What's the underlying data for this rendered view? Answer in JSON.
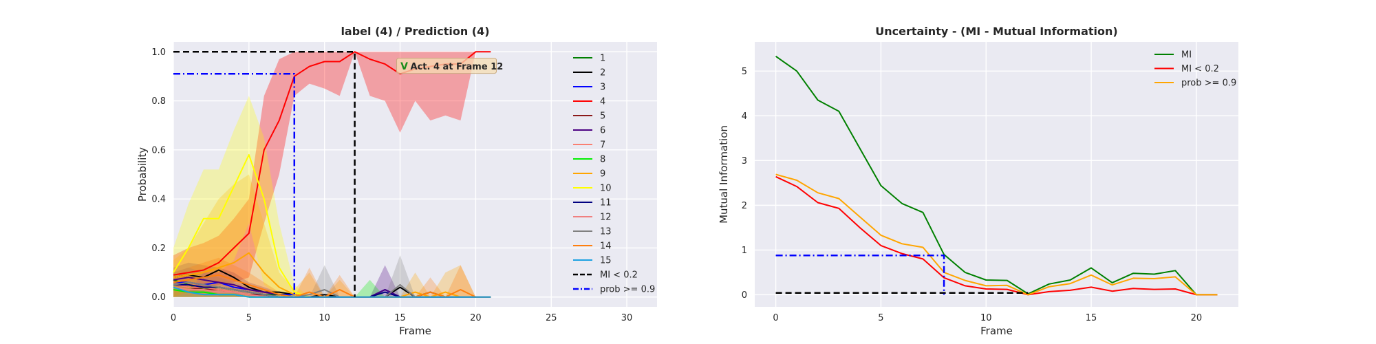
{
  "chart_data": [
    {
      "type": "line",
      "title": "label (4) / Prediction (4)",
      "xlabel": "Frame",
      "ylabel": "Probability",
      "xlim": [
        0,
        32
      ],
      "ylim": [
        -0.04,
        1.04
      ],
      "xticks": [
        0,
        5,
        10,
        15,
        20,
        25,
        30
      ],
      "yticks": [
        0.0,
        0.2,
        0.4,
        0.6,
        0.8,
        1.0
      ],
      "grid": true,
      "legend_position": "upper-right",
      "x": [
        0,
        1,
        2,
        3,
        4,
        5,
        6,
        7,
        8,
        9,
        10,
        11,
        12,
        13,
        14,
        15,
        16,
        17,
        18,
        19,
        20,
        21
      ],
      "series": [
        {
          "name": "1",
          "color": "#008000",
          "values": [
            0.07,
            0.05,
            0.03,
            0.04,
            0.03,
            0.02,
            0.01,
            0.01,
            0.01,
            0.0,
            0.0,
            0.0,
            0.0,
            0.0,
            0.03,
            0.0,
            0.0,
            0.0,
            0.0,
            0.0,
            0.0,
            0.0
          ]
        },
        {
          "name": "2",
          "color": "#000000",
          "values": [
            0.08,
            0.09,
            0.08,
            0.11,
            0.08,
            0.04,
            0.02,
            0.02,
            0.01,
            0.0,
            0.01,
            0.0,
            0.0,
            0.0,
            0.0,
            0.04,
            0.0,
            0.02,
            0.0,
            0.0,
            0.0,
            0.0
          ]
        },
        {
          "name": "3",
          "color": "#0000ff",
          "values": [
            0.06,
            0.06,
            0.05,
            0.06,
            0.04,
            0.03,
            0.02,
            0.01,
            0.01,
            0.0,
            0.0,
            0.0,
            0.0,
            0.0,
            0.03,
            0.0,
            0.0,
            0.0,
            0.0,
            0.0,
            0.0,
            0.0
          ]
        },
        {
          "name": "4",
          "color": "#ff0000",
          "values": [
            0.09,
            0.1,
            0.11,
            0.14,
            0.2,
            0.26,
            0.6,
            0.72,
            0.9,
            0.94,
            0.96,
            0.96,
            1.0,
            0.97,
            0.95,
            0.91,
            0.93,
            0.94,
            0.95,
            0.95,
            1.0,
            1.0
          ],
          "band_low": [
            0.0,
            0.02,
            0.03,
            0.05,
            0.06,
            0.08,
            0.3,
            0.5,
            0.82,
            0.87,
            0.85,
            0.82,
            1.0,
            0.82,
            0.8,
            0.67,
            0.8,
            0.72,
            0.74,
            0.72,
            1.0,
            1.0
          ],
          "band_high": [
            0.17,
            0.2,
            0.22,
            0.25,
            0.32,
            0.4,
            0.82,
            0.97,
            1.0,
            1.0,
            1.0,
            1.0,
            1.0,
            1.0,
            1.0,
            1.0,
            1.0,
            1.0,
            1.0,
            1.0,
            1.0,
            1.0
          ]
        },
        {
          "name": "5",
          "color": "#8b1a1a",
          "values": [
            0.05,
            0.04,
            0.03,
            0.03,
            0.02,
            0.01,
            0.01,
            0.0,
            0.0,
            0.0,
            0.0,
            0.0,
            0.0,
            0.0,
            0.0,
            0.0,
            0.0,
            0.0,
            0.0,
            0.0,
            0.0,
            0.0
          ]
        },
        {
          "name": "6",
          "color": "#4b0082",
          "values": [
            0.07,
            0.08,
            0.07,
            0.06,
            0.05,
            0.03,
            0.02,
            0.01,
            0.0,
            0.0,
            0.0,
            0.0,
            0.0,
            0.0,
            0.03,
            0.0,
            0.0,
            0.0,
            0.0,
            0.0,
            0.0,
            0.0
          ],
          "band_low": [
            0,
            0,
            0,
            0,
            0,
            0,
            0,
            0,
            0,
            0,
            0,
            0,
            0,
            0,
            0,
            0,
            0,
            0,
            0,
            0,
            0,
            0
          ],
          "band_high": [
            0.12,
            0.14,
            0.13,
            0.12,
            0.1,
            0.06,
            0.04,
            0.02,
            0.0,
            0.0,
            0.0,
            0.0,
            0.0,
            0.0,
            0.13,
            0.0,
            0.0,
            0.0,
            0.0,
            0.0,
            0.0,
            0.0
          ]
        },
        {
          "name": "7",
          "color": "#fa8072",
          "values": [
            0.05,
            0.04,
            0.04,
            0.03,
            0.02,
            0.01,
            0.0,
            0.0,
            0.0,
            0.0,
            0.0,
            0.0,
            0.0,
            0.0,
            0.0,
            0.0,
            0.0,
            0.0,
            0.0,
            0.0,
            0.0,
            0.0
          ]
        },
        {
          "name": "8",
          "color": "#00ee00",
          "values": [
            0.03,
            0.02,
            0.02,
            0.01,
            0.01,
            0.0,
            0.0,
            0.0,
            0.0,
            0.0,
            0.0,
            0.0,
            0.0,
            0.0,
            0.0,
            0.0,
            0.0,
            0.0,
            0.0,
            0.0,
            0.0,
            0.0
          ],
          "band_low": [
            0,
            0,
            0,
            0,
            0,
            0,
            0,
            0,
            0,
            0,
            0,
            0,
            0,
            0,
            0,
            0,
            0,
            0,
            0,
            0,
            0,
            0
          ],
          "band_high": [
            0.05,
            0.04,
            0.03,
            0.02,
            0.02,
            0.0,
            0.0,
            0.0,
            0.0,
            0.0,
            0.0,
            0.0,
            0.0,
            0.07,
            0.0,
            0.0,
            0.0,
            0.0,
            0.0,
            0.0,
            0.0,
            0.0
          ]
        },
        {
          "name": "9",
          "color": "#ffa500",
          "values": [
            0.08,
            0.09,
            0.1,
            0.12,
            0.14,
            0.18,
            0.1,
            0.04,
            0.01,
            0.0,
            0.0,
            0.0,
            0.0,
            0.0,
            0.0,
            0.0,
            0.02,
            0.0,
            0.02,
            0.0,
            0.0,
            0.0
          ],
          "band_low": [
            0,
            0,
            0,
            0,
            0,
            0,
            0,
            0,
            0,
            0,
            0,
            0,
            0,
            0,
            0,
            0,
            0,
            0,
            0,
            0,
            0,
            0
          ],
          "band_high": [
            0.15,
            0.2,
            0.3,
            0.4,
            0.46,
            0.5,
            0.3,
            0.1,
            0.03,
            0.1,
            0.0,
            0.07,
            0.0,
            0.0,
            0.0,
            0.0,
            0.1,
            0.0,
            0.1,
            0.13,
            0.0,
            0.0
          ]
        },
        {
          "name": "10",
          "color": "#ffff00",
          "values": [
            0.1,
            0.2,
            0.32,
            0.32,
            0.45,
            0.58,
            0.4,
            0.12,
            0.02,
            0.0,
            0.0,
            0.0,
            0.0,
            0.0,
            0.0,
            0.0,
            0.0,
            0.0,
            0.0,
            0.0,
            0.0,
            0.0
          ],
          "band_low": [
            0.0,
            0.02,
            0.1,
            0.1,
            0.15,
            0.3,
            0.05,
            0.0,
            0.0,
            0.0,
            0.0,
            0.0,
            0.0,
            0.0,
            0.0,
            0.0,
            0.0,
            0.0,
            0.0,
            0.0,
            0.0,
            0.0
          ],
          "band_high": [
            0.2,
            0.38,
            0.52,
            0.52,
            0.68,
            0.82,
            0.65,
            0.3,
            0.05,
            0.0,
            0.0,
            0.0,
            0.0,
            0.0,
            0.0,
            0.0,
            0.0,
            0.0,
            0.0,
            0.0,
            0.0,
            0.0
          ]
        },
        {
          "name": "11",
          "color": "#000080",
          "values": [
            0.05,
            0.05,
            0.04,
            0.04,
            0.03,
            0.02,
            0.01,
            0.0,
            0.0,
            0.0,
            0.0,
            0.0,
            0.0,
            0.0,
            0.02,
            0.0,
            0.0,
            0.0,
            0.0,
            0.0,
            0.0,
            0.0
          ]
        },
        {
          "name": "12",
          "color": "#f08080",
          "values": [
            0.04,
            0.03,
            0.03,
            0.02,
            0.02,
            0.01,
            0.0,
            0.0,
            0.0,
            0.0,
            0.0,
            0.0,
            0.0,
            0.0,
            0.0,
            0.0,
            0.0,
            0.0,
            0.0,
            0.0,
            0.0,
            0.0
          ]
        },
        {
          "name": "13",
          "color": "#808080",
          "values": [
            0.05,
            0.06,
            0.05,
            0.04,
            0.03,
            0.02,
            0.01,
            0.0,
            0.0,
            0.01,
            0.03,
            0.0,
            0.0,
            0.0,
            0.0,
            0.05,
            0.0,
            0.0,
            0.0,
            0.0,
            0.0,
            0.0
          ],
          "band_low": [
            0,
            0,
            0,
            0,
            0,
            0,
            0,
            0,
            0,
            0,
            0,
            0,
            0,
            0,
            0,
            0,
            0,
            0,
            0,
            0,
            0,
            0
          ],
          "band_high": [
            0.1,
            0.12,
            0.1,
            0.08,
            0.06,
            0.04,
            0.02,
            0.0,
            0.0,
            0.0,
            0.13,
            0.0,
            0.0,
            0.0,
            0.0,
            0.17,
            0.0,
            0.0,
            0.0,
            0.0,
            0.0,
            0.0
          ]
        },
        {
          "name": "14",
          "color": "#ff7f0e",
          "values": [
            0.06,
            0.07,
            0.08,
            0.09,
            0.07,
            0.05,
            0.03,
            0.01,
            0.0,
            0.02,
            0.0,
            0.03,
            0.0,
            0.0,
            0.0,
            0.0,
            0.0,
            0.02,
            0.0,
            0.03,
            0.0,
            0.0
          ],
          "band_low": [
            0,
            0,
            0,
            0,
            0,
            0,
            0,
            0,
            0,
            0,
            0,
            0,
            0,
            0,
            0,
            0,
            0,
            0,
            0,
            0,
            0,
            0
          ],
          "band_high": [
            0.1,
            0.12,
            0.14,
            0.16,
            0.13,
            0.1,
            0.06,
            0.02,
            0.0,
            0.12,
            0.0,
            0.09,
            0.0,
            0.0,
            0.0,
            0.0,
            0.0,
            0.08,
            0.0,
            0.13,
            0.0,
            0.0
          ]
        },
        {
          "name": "15",
          "color": "#1ba1e2",
          "values": [
            0.04,
            0.02,
            0.01,
            0.01,
            0.01,
            0.0,
            0.0,
            0.0,
            0.0,
            0.0,
            0.0,
            0.0,
            0.0,
            0.0,
            0.0,
            0.0,
            0.0,
            0.0,
            0.0,
            0.0,
            0.0,
            0.0
          ]
        }
      ],
      "reference_lines": [
        {
          "name": "MI < 0.2",
          "color": "#000000",
          "style": "dashed",
          "points": [
            [
              0,
              1.0
            ],
            [
              12,
              1.0
            ],
            [
              12,
              0.0
            ]
          ]
        },
        {
          "name": "prob >= 0.9",
          "color": "#0000ff",
          "style": "dashdot",
          "points": [
            [
              0,
              0.91
            ],
            [
              8,
              0.91
            ],
            [
              8,
              0.0
            ]
          ]
        }
      ],
      "annotation": {
        "marker": "V",
        "text": "Act. 4 at Frame 12",
        "x": 15,
        "y": 0.94
      }
    },
    {
      "type": "line",
      "title": "Uncertainty - (MI - Mutual Information)",
      "xlabel": "Frame",
      "ylabel": "Mutual Information",
      "xlim": [
        -1,
        22
      ],
      "ylim": [
        -0.27,
        5.65
      ],
      "xticks": [
        0,
        5,
        10,
        15,
        20
      ],
      "yticks": [
        0,
        1,
        2,
        3,
        4,
        5
      ],
      "grid": true,
      "legend_position": "upper-right",
      "x": [
        0,
        1,
        2,
        3,
        4,
        5,
        6,
        7,
        8,
        9,
        10,
        11,
        12,
        13,
        14,
        15,
        16,
        17,
        18,
        19,
        20,
        21
      ],
      "series": [
        {
          "name": "MI",
          "color": "#008000",
          "values": [
            5.33,
            5.0,
            4.35,
            4.1,
            3.27,
            2.44,
            2.04,
            1.84,
            0.9,
            0.5,
            0.33,
            0.32,
            0.02,
            0.24,
            0.33,
            0.6,
            0.27,
            0.48,
            0.46,
            0.54,
            0.0,
            0.0
          ]
        },
        {
          "name": "MI < 0.2",
          "color": "#ff0000",
          "values": [
            2.64,
            2.42,
            2.06,
            1.93,
            1.5,
            1.1,
            0.92,
            0.8,
            0.38,
            0.2,
            0.13,
            0.12,
            0.0,
            0.07,
            0.1,
            0.17,
            0.08,
            0.14,
            0.12,
            0.13,
            0.0,
            0.0
          ]
        },
        {
          "name": "prob >= 0.9",
          "color": "#ffa500",
          "values": [
            2.69,
            2.56,
            2.28,
            2.15,
            1.74,
            1.33,
            1.14,
            1.06,
            0.5,
            0.32,
            0.2,
            0.21,
            0.0,
            0.18,
            0.25,
            0.44,
            0.22,
            0.37,
            0.36,
            0.4,
            0.0,
            0.0
          ]
        }
      ],
      "reference_lines": [
        {
          "color": "#000000",
          "style": "dashed",
          "points": [
            [
              0,
              0.04
            ],
            [
              12,
              0.04
            ]
          ]
        },
        {
          "color": "#0000ff",
          "style": "dashdot",
          "points": [
            [
              0,
              0.88
            ],
            [
              8,
              0.88
            ],
            [
              8,
              0.0
            ]
          ]
        }
      ]
    }
  ]
}
